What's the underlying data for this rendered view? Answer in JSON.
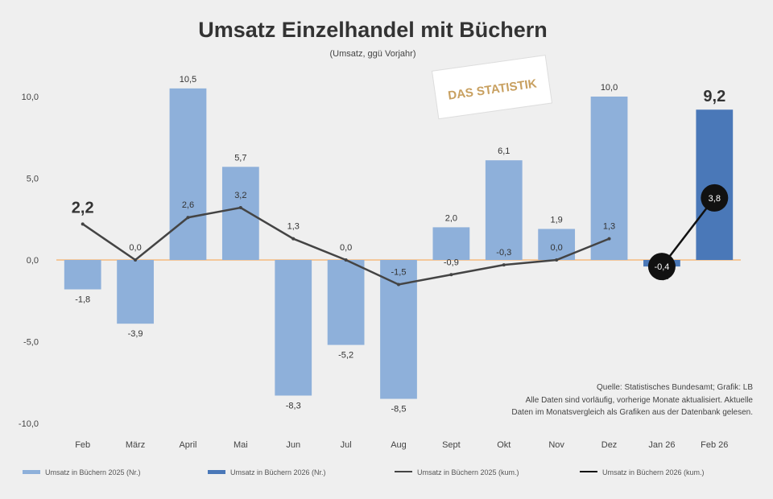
{
  "chart_data": {
    "type": "bar",
    "title": "Umsatz Einzelhandel mit Büchern",
    "subtitle": "(Umsatz, ggü Vorjahr)",
    "categories": [
      "Feb",
      "März",
      "April",
      "Mai",
      "Jun",
      "Jul",
      "Aug",
      "Sept",
      "Okt",
      "Nov",
      "Dez",
      "Jan 26",
      "Feb 26"
    ],
    "ylim": [
      -10,
      10
    ],
    "yticks": [
      "10,0",
      "5,0",
      "0,0",
      "-5,0",
      "-10,0"
    ],
    "series": [
      {
        "name": "Umsatz in Büchern 2025 (Nr.)",
        "kind": "bar",
        "color": "#8eb0da",
        "values": [
          -1.8,
          -3.9,
          10.5,
          5.7,
          -8.3,
          -5.2,
          -8.5,
          2.0,
          6.1,
          1.9,
          10.0,
          null,
          null
        ],
        "labels": [
          "-1,8",
          "-3,9",
          "10,5",
          "5,7",
          "-8,3",
          "-5,2",
          "-8,5",
          "2,0",
          "6,1",
          "1,9",
          "10,0",
          "",
          ""
        ]
      },
      {
        "name": "Umsatz in Büchern 2026 (Nr.)",
        "kind": "bar",
        "color": "#4a78b8",
        "values": [
          null,
          null,
          null,
          null,
          null,
          null,
          null,
          null,
          null,
          null,
          null,
          -0.4,
          9.2
        ],
        "labels": [
          "",
          "",
          "",
          "",
          "",
          "",
          "",
          "",
          "",
          "",
          "",
          "-0,4",
          "9,2"
        ]
      },
      {
        "name": "Umsatz in Büchern 2025 (kum.)",
        "kind": "line",
        "color": "#444444",
        "values": [
          2.2,
          0.0,
          2.6,
          3.2,
          1.3,
          0.0,
          -1.5,
          -0.9,
          -0.3,
          0.0,
          1.3,
          null,
          null
        ],
        "labels": [
          "2,2",
          "0,0",
          "2,6",
          "3,2",
          "1,3",
          "0,0",
          "-1,5",
          "-0,9",
          "-0,3",
          "0,0",
          "1,3",
          "",
          ""
        ]
      },
      {
        "name": "Umsatz in Büchern 2026 (kum.)",
        "kind": "line",
        "color": "#111111",
        "values": [
          null,
          null,
          null,
          null,
          null,
          null,
          null,
          null,
          null,
          null,
          null,
          -0.4,
          3.8
        ],
        "labels": [
          "",
          "",
          "",
          "",
          "",
          "",
          "",
          "",
          "",
          "",
          "",
          "-0,4",
          "3,8"
        ]
      }
    ],
    "grid": false,
    "legend_position": "bottom"
  },
  "logo_text": "DAS STATISTIK",
  "source_line": "Quelle: Statistisches Bundesamt; Grafik: LB",
  "note_line1": "Alle Daten sind vorläufig, vorherige Monate aktualisiert. Aktuelle",
  "note_line2": "Daten im Monatsvergleich als Grafiken aus der Datenbank gelesen."
}
